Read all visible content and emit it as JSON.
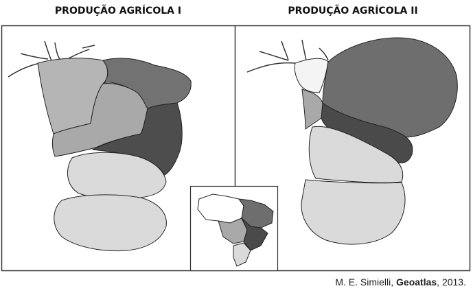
{
  "titles": [
    "PRODUÇÃO AGRÍCOLA I",
    "PRODUÇÃO AGRÍCOLA II"
  ],
  "citation": {
    "author": "M. E. Simielli, ",
    "work": "Geoatlas",
    "year": ", 2013."
  }
}
